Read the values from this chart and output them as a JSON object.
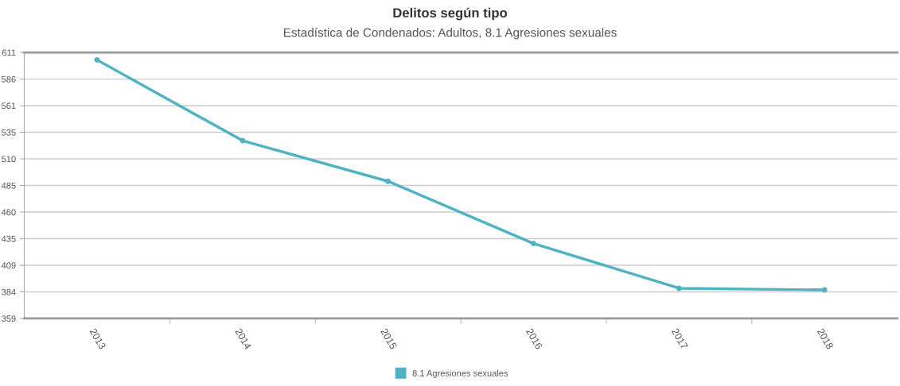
{
  "chart_data": {
    "type": "line",
    "title": "Delitos según tipo",
    "subtitle": "Estadística de Condenados: Adultos, 8.1 Agresiones sexuales",
    "categories": [
      "2013",
      "2014",
      "2015",
      "2016",
      "2017",
      "2018"
    ],
    "series": [
      {
        "name": "8.1 Agresiones sexuales",
        "color": "#4fb3c4",
        "values": [
          604,
          527.5,
          489,
          430,
          387.6,
          386
        ]
      }
    ],
    "ylim": [
      359,
      611
    ],
    "yticks": [
      {
        "value": 359,
        "label": "359"
      },
      {
        "value": 384.2,
        "label": "384"
      },
      {
        "value": 409.4,
        "label": "409"
      },
      {
        "value": 434.6,
        "label": "435"
      },
      {
        "value": 459.8,
        "label": "460"
      },
      {
        "value": 485,
        "label": "485"
      },
      {
        "value": 510.2,
        "label": "510"
      },
      {
        "value": 535.4,
        "label": "535"
      },
      {
        "value": 560.6,
        "label": "561"
      },
      {
        "value": 585.8,
        "label": "586"
      },
      {
        "value": 611,
        "label": "611"
      }
    ],
    "grid": "y",
    "legend": "bottom",
    "marker": "circle",
    "line_style": "solid"
  }
}
